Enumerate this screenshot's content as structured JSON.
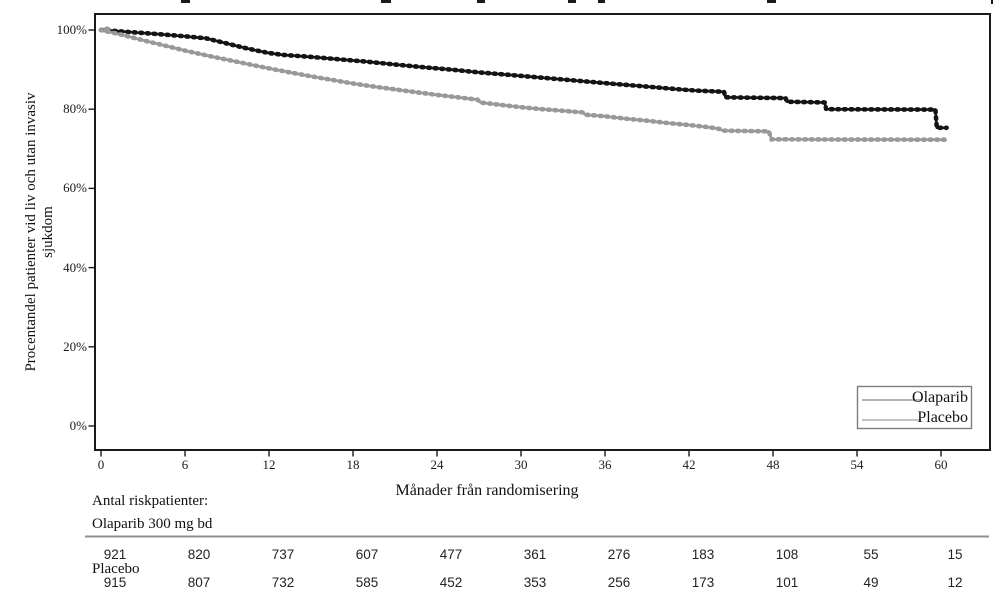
{
  "figure": {
    "background": "#ffffff",
    "frame_color": "#1a1a1a"
  },
  "axis": {
    "ylabel_line1": "Procentandel patienter vid liv och utan invasiv",
    "ylabel_line2": "sjukdom",
    "xlabel": "Månader från randomisering"
  },
  "legend": {
    "position": "lower-right",
    "entries": [
      {
        "label": "Olaparib",
        "sample_color": "#b3b3b3"
      },
      {
        "label": "Placebo",
        "sample_color": "#c2c2c2"
      }
    ]
  },
  "risk_table": {
    "caption": "Antal riskpatienter:",
    "groups": [
      {
        "label": "Olaparib 300 mg bd",
        "counts": [
          "921",
          "820",
          "737",
          "607",
          "477",
          "361",
          "276",
          "183",
          "108",
          "55",
          "15"
        ]
      },
      {
        "label": "Placebo",
        "counts": [
          "915",
          "807",
          "732",
          "585",
          "452",
          "353",
          "256",
          "173",
          "101",
          "49",
          "12"
        ]
      }
    ]
  },
  "chart_data": {
    "type": "line",
    "subtype": "kaplan-meier",
    "title": "",
    "xlabel": "Månader från randomisering",
    "ylabel": "Procentandel patienter vid liv och utan invasiv sjukdom",
    "grid": false,
    "legend_position": "lower right",
    "x_ticks": [
      0,
      6,
      12,
      18,
      24,
      30,
      36,
      42,
      48,
      54,
      60
    ],
    "x_tick_labels": [
      "0",
      "6",
      "12",
      "18",
      "24",
      "30",
      "36",
      "42",
      "48",
      "54",
      "60"
    ],
    "y_tick_labels_top_to_bottom": [
      "100%",
      "80%",
      "60%",
      "40%",
      "20%",
      "0%"
    ],
    "y_tick_percent": [
      100,
      80,
      60,
      40,
      20,
      0
    ],
    "xlim": [
      -0.5,
      63.5
    ],
    "ylim_percent": [
      -6,
      104
    ],
    "series": [
      {
        "name": "Olaparib",
        "color": "#141414",
        "points_month_percent": [
          [
            0,
            100
          ],
          [
            0.5,
            99.9
          ],
          [
            2,
            99.5
          ],
          [
            4,
            99.0
          ],
          [
            6,
            98.4
          ],
          [
            7.5,
            97.9
          ],
          [
            9,
            96.6
          ],
          [
            10,
            95.7
          ],
          [
            11,
            94.9
          ],
          [
            12,
            94.2
          ],
          [
            13,
            93.7
          ],
          [
            15,
            93.2
          ],
          [
            17,
            92.6
          ],
          [
            19,
            92.0
          ],
          [
            21,
            91.3
          ],
          [
            23,
            90.6
          ],
          [
            25,
            90.0
          ],
          [
            27,
            89.3
          ],
          [
            29,
            88.7
          ],
          [
            31,
            88.1
          ],
          [
            33,
            87.5
          ],
          [
            35,
            86.9
          ],
          [
            37,
            86.3
          ],
          [
            39,
            85.7
          ],
          [
            41,
            85.1
          ],
          [
            42.5,
            84.7
          ],
          [
            44.5,
            84.4
          ],
          [
            44.6,
            83.0
          ],
          [
            46.5,
            82.9
          ],
          [
            48.9,
            82.8
          ],
          [
            49.0,
            81.9
          ],
          [
            51.7,
            81.7
          ],
          [
            51.8,
            80.0
          ],
          [
            55,
            79.95
          ],
          [
            59.6,
            79.9
          ],
          [
            59.7,
            75.3
          ],
          [
            60.4,
            75.3
          ]
        ]
      },
      {
        "name": "Placebo",
        "color": "#999999",
        "points_month_percent": [
          [
            0,
            100
          ],
          [
            0.5,
            99.6
          ],
          [
            1.5,
            98.8
          ],
          [
            3,
            97.4
          ],
          [
            4.5,
            96.1
          ],
          [
            6,
            94.8
          ],
          [
            7.5,
            93.6
          ],
          [
            9,
            92.5
          ],
          [
            10.5,
            91.4
          ],
          [
            12,
            90.3
          ],
          [
            13.5,
            89.3
          ],
          [
            15,
            88.3
          ],
          [
            16.5,
            87.4
          ],
          [
            18,
            86.5
          ],
          [
            19.5,
            85.7
          ],
          [
            21,
            85.0
          ],
          [
            22.5,
            84.3
          ],
          [
            24,
            83.6
          ],
          [
            25.5,
            83.0
          ],
          [
            26.9,
            82.4
          ],
          [
            27.1,
            81.7
          ],
          [
            28.5,
            81.1
          ],
          [
            30,
            80.5
          ],
          [
            31.5,
            80.0
          ],
          [
            33,
            79.6
          ],
          [
            34.4,
            79.2
          ],
          [
            34.6,
            78.6
          ],
          [
            36,
            78.2
          ],
          [
            37.5,
            77.6
          ],
          [
            39,
            77.1
          ],
          [
            40.5,
            76.5
          ],
          [
            42,
            76.0
          ],
          [
            43.5,
            75.4
          ],
          [
            44.2,
            75.0
          ],
          [
            44.4,
            74.6
          ],
          [
            46,
            74.5
          ],
          [
            47.7,
            74.4
          ],
          [
            47.9,
            72.4
          ],
          [
            52,
            72.35
          ],
          [
            60.3,
            72.3
          ]
        ]
      }
    ]
  }
}
